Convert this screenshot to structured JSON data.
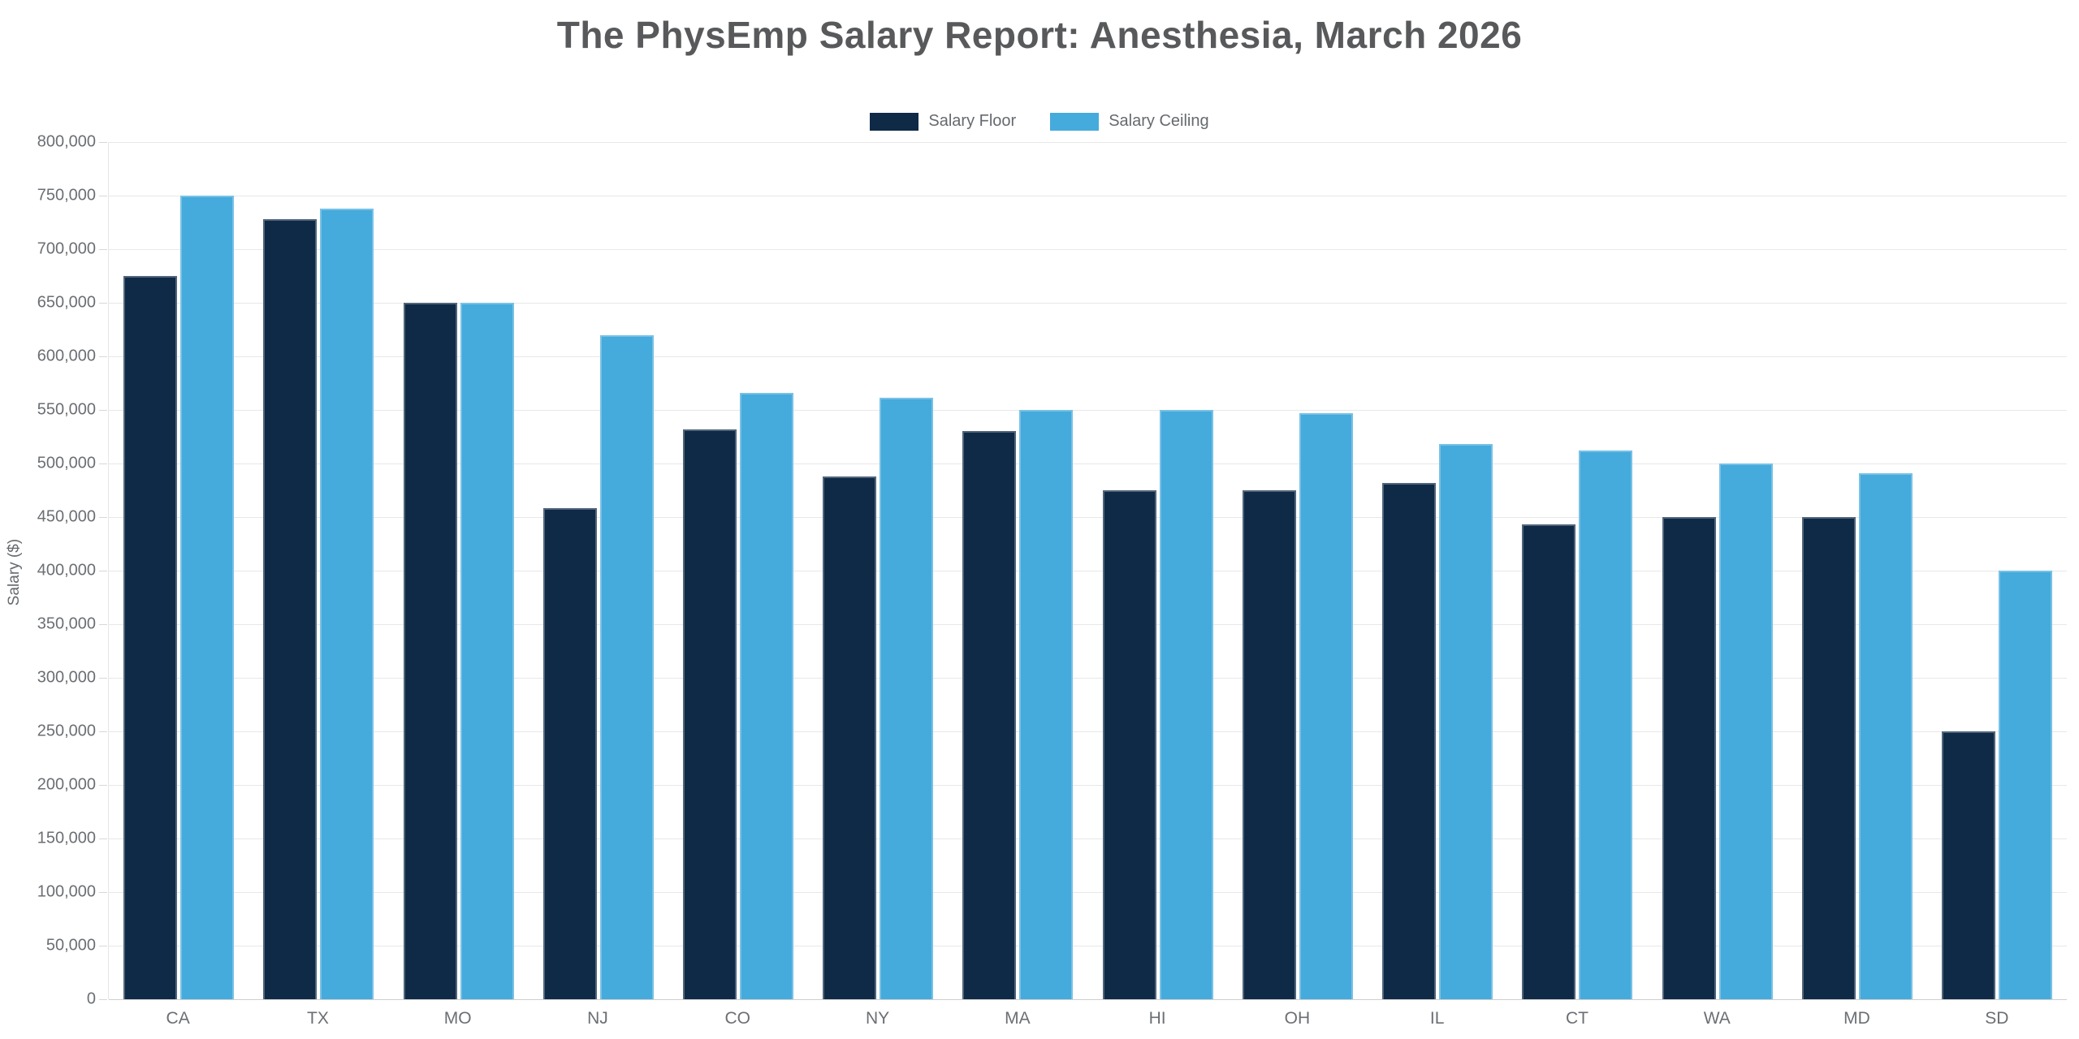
{
  "title": "The PhysEmp Salary Report: Anesthesia, March 2026",
  "y_axis": {
    "label": "Salary ($)",
    "tick_labels": [
      "0",
      "50,000",
      "100,000",
      "150,000",
      "200,000",
      "250,000",
      "300,000",
      "350,000",
      "400,000",
      "450,000",
      "500,000",
      "550,000",
      "600,000",
      "650,000",
      "700,000",
      "750,000",
      "800,000"
    ]
  },
  "colors": {
    "floor": "#0e2a47",
    "ceiling": "#45aadc",
    "title_text": "#58595b",
    "axis_text": "#6b6f73",
    "gridline": "#e8e8e8"
  },
  "chart_data": {
    "type": "bar",
    "title": "The PhysEmp Salary Report: Anesthesia, March 2026",
    "xlabel": "",
    "ylabel": "Salary ($)",
    "ylim": [
      0,
      800000
    ],
    "ytick_step": 50000,
    "grid": true,
    "legend_position": "top-center",
    "categories": [
      "CA",
      "TX",
      "MO",
      "NJ",
      "CO",
      "NY",
      "MA",
      "HI",
      "OH",
      "IL",
      "CT",
      "WA",
      "MD",
      "SD"
    ],
    "series": [
      {
        "name": "Salary Floor",
        "color": "#0e2a47",
        "values": [
          675000,
          728000,
          650000,
          458000,
          532000,
          488000,
          530000,
          475000,
          475000,
          482000,
          443000,
          450000,
          450000,
          250000
        ]
      },
      {
        "name": "Salary Ceiling",
        "color": "#45aadc",
        "values": [
          750000,
          738000,
          650000,
          620000,
          566000,
          561000,
          550000,
          550000,
          547000,
          518000,
          512000,
          500000,
          491000,
          400000
        ]
      }
    ]
  }
}
